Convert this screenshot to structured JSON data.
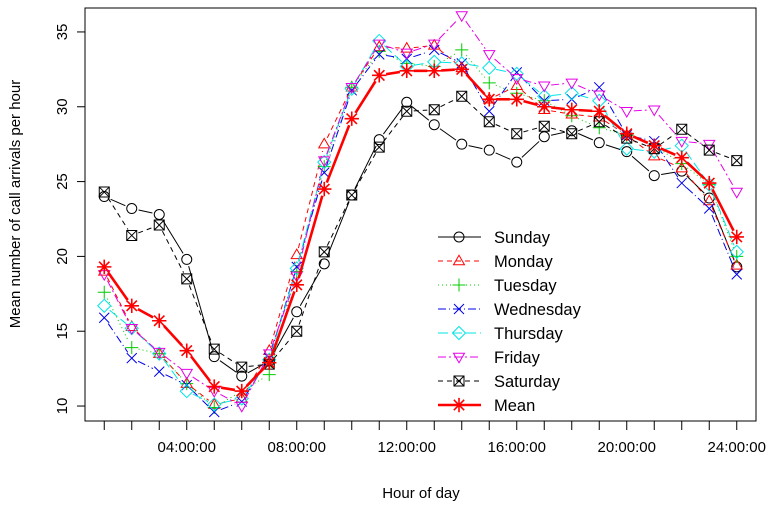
{
  "chart_data": {
    "type": "line",
    "title": "",
    "xlabel": "Hour of day",
    "ylabel": "Mean number of call arrivals per hour",
    "xlim": [
      0.3,
      24.7
    ],
    "ylim": [
      9.0,
      36.6
    ],
    "x_ticks": [
      4,
      8,
      12,
      16,
      20,
      24
    ],
    "x_tick_labels": [
      "04:00:00",
      "08:00:00",
      "12:00:00",
      "16:00:00",
      "20:00:00",
      "24:00:00"
    ],
    "y_ticks": [
      10,
      15,
      20,
      25,
      30,
      35
    ],
    "y_tick_labels": [
      "10",
      "15",
      "20",
      "25",
      "30",
      "35"
    ],
    "grid": false,
    "legend_position": "right-center",
    "x": [
      1,
      2,
      3,
      4,
      5,
      6,
      7,
      8,
      9,
      10,
      11,
      12,
      13,
      14,
      15,
      16,
      17,
      18,
      19,
      20,
      21,
      22,
      23,
      24
    ],
    "series": [
      {
        "name": "Sunday",
        "color": "#000000",
        "dash": "solid",
        "marker": "circle",
        "width": 1,
        "values": [
          24.0,
          23.2,
          22.8,
          19.8,
          13.3,
          12.0,
          13.0,
          16.3,
          19.5,
          24.1,
          27.8,
          30.3,
          28.8,
          27.5,
          27.1,
          26.3,
          28.0,
          28.4,
          27.6,
          27.0,
          25.4,
          25.7,
          23.9,
          19.3
        ]
      },
      {
        "name": "Monday",
        "color": "#ff0000",
        "dash": "5,4",
        "marker": "triangle-up",
        "width": 1,
        "values": [
          19.0,
          15.3,
          13.5,
          11.5,
          10.1,
          10.5,
          13.7,
          20.1,
          27.5,
          31.3,
          34.0,
          33.9,
          34.1,
          32.6,
          30.5,
          31.4,
          29.8,
          29.5,
          29.3,
          28.1,
          26.7,
          25.9,
          23.7,
          19.4
        ]
      },
      {
        "name": "Tuesday",
        "color": "#00cc00",
        "dash": "1,3",
        "marker": "plus",
        "width": 1,
        "values": [
          17.6,
          13.9,
          13.5,
          11.5,
          9.9,
          11.0,
          12.1,
          19.0,
          26.0,
          31.3,
          33.7,
          32.9,
          32.7,
          33.8,
          31.6,
          30.9,
          30.4,
          29.4,
          28.6,
          28.1,
          27.4,
          26.2,
          24.8,
          20.0
        ]
      },
      {
        "name": "Wednesday",
        "color": "#0000ee",
        "dash": "8,3,1,3",
        "marker": "cross",
        "width": 1,
        "values": [
          15.9,
          13.2,
          12.3,
          11.4,
          9.6,
          10.3,
          13.2,
          19.3,
          25.6,
          31.1,
          33.5,
          33.2,
          33.8,
          32.9,
          29.7,
          32.3,
          30.4,
          30.5,
          31.3,
          28.1,
          27.7,
          24.9,
          23.2,
          18.8
        ]
      },
      {
        "name": "Thursday",
        "color": "#00e5e5",
        "dash": "10,4",
        "marker": "diamond",
        "width": 1,
        "values": [
          16.7,
          15.2,
          13.5,
          11.0,
          10.1,
          10.5,
          13.1,
          19.2,
          26.3,
          31.2,
          34.4,
          32.7,
          33.0,
          32.9,
          32.6,
          32.2,
          30.7,
          30.9,
          30.4,
          27.2,
          27.0,
          27.4,
          24.8,
          20.3
        ]
      },
      {
        "name": "Friday",
        "color": "#e600e6",
        "dash": "8,3,2,3",
        "marker": "triangle-down",
        "width": 1,
        "values": [
          18.8,
          15.2,
          13.6,
          12.2,
          11.0,
          10.0,
          13.5,
          18.7,
          26.4,
          31.3,
          34.2,
          33.6,
          34.2,
          36.1,
          33.5,
          31.9,
          31.4,
          31.6,
          30.8,
          29.7,
          29.8,
          27.7,
          27.5,
          24.3
        ]
      },
      {
        "name": "Saturday",
        "color": "#000000",
        "dash": "5,4",
        "marker": "boxed-x",
        "width": 1,
        "values": [
          24.3,
          21.4,
          22.1,
          18.5,
          13.8,
          12.6,
          12.8,
          15.0,
          20.3,
          24.1,
          27.3,
          29.7,
          29.8,
          30.7,
          29.0,
          28.2,
          28.7,
          28.2,
          29.0,
          27.9,
          27.2,
          28.5,
          27.1,
          26.4
        ]
      },
      {
        "name": "Mean",
        "color": "#ff0000",
        "dash": "solid",
        "marker": "asterisk",
        "width": 2.6,
        "values": [
          19.3,
          16.7,
          15.7,
          13.7,
          11.3,
          11.0,
          12.9,
          18.1,
          24.5,
          29.2,
          32.1,
          32.4,
          32.4,
          32.5,
          30.5,
          30.5,
          30.0,
          29.8,
          29.7,
          28.2,
          27.4,
          26.6,
          24.9,
          21.3
        ]
      }
    ]
  }
}
